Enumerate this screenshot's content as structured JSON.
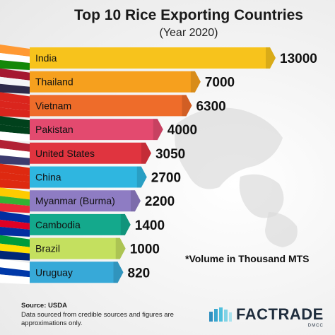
{
  "header": {
    "title": "Top 10 Rice Exporting Countries",
    "subtitle": "(Year 2020)"
  },
  "chart_data": {
    "type": "bar",
    "orientation": "horizontal",
    "title": "Top 10 Rice Exporting Countries",
    "subtitle": "(Year 2020)",
    "categories": [
      "India",
      "Thailand",
      "Vietnam",
      "Pakistan",
      "United States",
      "China",
      "Myanmar (Burma)",
      "Cambodia",
      "Brazil",
      "Uruguay"
    ],
    "values": [
      13000,
      7000,
      6300,
      4000,
      3050,
      2700,
      2200,
      1400,
      1000,
      820
    ],
    "value_labels": [
      "13000",
      "7000",
      "6300",
      "4000",
      "3050",
      "2700",
      "2200",
      "1400",
      "1000",
      "820"
    ],
    "bar_colors": [
      "#f7c31c",
      "#f6a01e",
      "#ee6c2a",
      "#e34a6f",
      "#e0343f",
      "#2fb6e0",
      "#8e7cc3",
      "#14a98c",
      "#c4e05f",
      "#37a9d8"
    ],
    "grid": false,
    "legend": "none"
  },
  "note": "*Volume in Thousand MTS",
  "footer": {
    "source": "Source: USDA",
    "disclaimer": "Data sourced from credible sources and figures are approximations only."
  },
  "logo": {
    "name": "FACTRADE",
    "sub": "DMCC",
    "icon": "factrade-logo-icon"
  },
  "flags": [
    "india-flag-icon",
    "thailand-flag-icon",
    "vietnam-flag-icon",
    "pakistan-flag-icon",
    "usa-flag-icon",
    "china-flag-icon",
    "myanmar-flag-icon",
    "cambodia-flag-icon",
    "brazil-flag-icon",
    "uruguay-flag-icon"
  ]
}
